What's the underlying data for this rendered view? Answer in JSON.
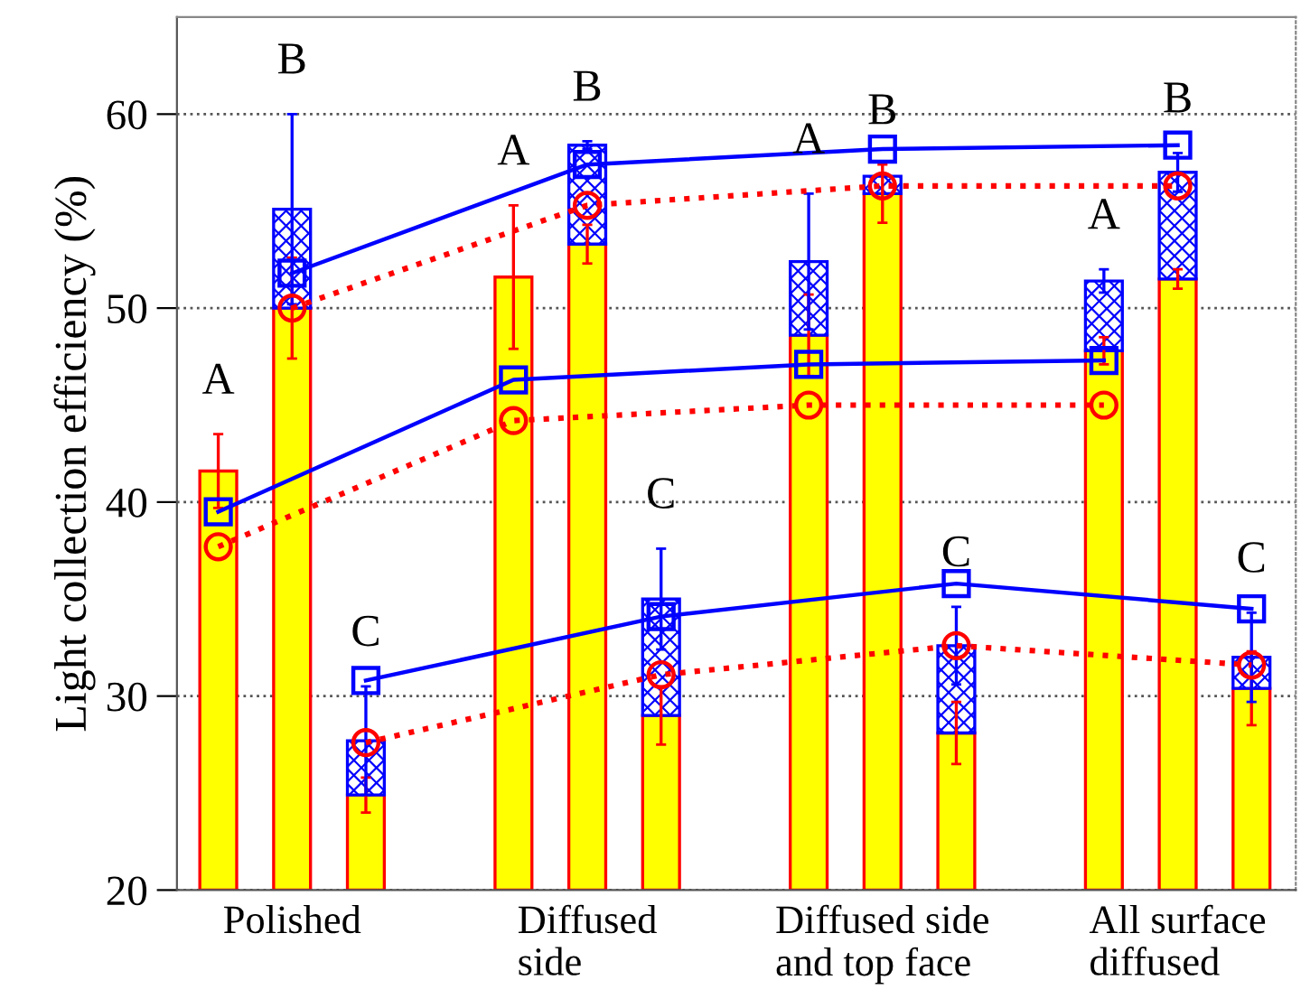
{
  "chart_data": {
    "type": "bar",
    "ylabel": "Light collection efficiency (%)",
    "grid": "y",
    "stacked": true,
    "categories": [
      null,
      "Polished",
      null,
      null,
      null,
      "Diffused\nside",
      null,
      null,
      null,
      "Diffused side\nand top face",
      null,
      null,
      null,
      "All surface\ndiffused",
      null
    ],
    "ylim": [
      20,
      65
    ],
    "yticks": [
      20,
      30,
      40,
      50,
      60
    ],
    "series": [
      {
        "color": "#ffff00",
        "values": [
          41.6,
          50.0,
          24.9,
          null,
          51.6,
          53.3,
          29.0,
          null,
          48.6,
          55.9,
          28.1,
          null,
          47.8,
          51.5,
          30.4
        ],
        "errors": [
          1.9,
          2.6,
          0.9,
          null,
          3.7,
          1.0,
          1.5,
          null,
          2.1,
          1.5,
          1.6,
          null,
          0.7,
          0.5,
          1.9
        ]
      },
      {
        "color": "#0000ff",
        "base": [
          null,
          50.0,
          24.9,
          null,
          null,
          53.3,
          29.0,
          null,
          48.6,
          55.9,
          28.1,
          null,
          47.8,
          51.5,
          30.4
        ],
        "values": [
          null,
          5.1,
          2.8,
          null,
          null,
          5.1,
          6.0,
          null,
          3.8,
          0.9,
          4.5,
          null,
          3.6,
          5.5,
          1.6
        ],
        "errors": [
          null,
          4.9,
          2.8,
          null,
          null,
          0.2,
          2.6,
          null,
          3.5,
          null,
          2.0,
          null,
          0.6,
          1.0,
          2.3
        ]
      },
      {
        "type": "line",
        "color": "#0000ff",
        "marker": "square",
        "line_style": "solid",
        "values": [
          39.5,
          null,
          null,
          null,
          46.3,
          null,
          null,
          null,
          47.1,
          null,
          null,
          null,
          47.3,
          null,
          null
        ]
      },
      {
        "type": "line",
        "color": "#0000ff",
        "marker": "square",
        "line_style": "solid",
        "values": [
          null,
          51.8,
          null,
          null,
          null,
          57.4,
          null,
          null,
          null,
          58.2,
          null,
          null,
          null,
          58.4,
          null
        ]
      },
      {
        "type": "line",
        "color": "#0000ff",
        "marker": "square",
        "line_style": "solid",
        "values": [
          null,
          null,
          30.8,
          null,
          null,
          null,
          34.1,
          null,
          null,
          null,
          35.8,
          null,
          null,
          null,
          34.5
        ]
      },
      {
        "type": "line",
        "color": "#ff0000",
        "marker": "circle",
        "line_style": "dotted",
        "values": [
          37.7,
          null,
          null,
          null,
          44.2,
          null,
          null,
          null,
          45.0,
          null,
          null,
          null,
          45.0,
          null,
          null
        ]
      },
      {
        "type": "line",
        "color": "#ff0000",
        "marker": "circle",
        "line_style": "dotted",
        "values": [
          null,
          50.0,
          null,
          null,
          null,
          55.3,
          null,
          null,
          null,
          56.3,
          null,
          null,
          null,
          56.3,
          null
        ]
      },
      {
        "type": "line",
        "color": "#ff0000",
        "marker": "circle",
        "line_style": "dotted",
        "values": [
          null,
          null,
          27.6,
          null,
          null,
          null,
          31.1,
          null,
          null,
          null,
          32.6,
          null,
          null,
          null,
          31.6
        ]
      }
    ],
    "annotations": [
      "A",
      "B",
      "C",
      "A",
      "B",
      "C",
      "A",
      "B",
      "C",
      "A",
      "B",
      "C"
    ]
  }
}
